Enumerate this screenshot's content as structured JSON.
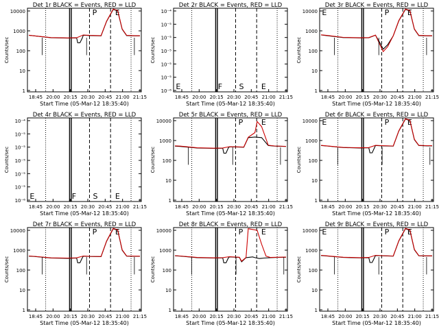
{
  "chart_data": [
    {
      "type": "line",
      "title": "Det 1r BLACK = Events, RED = LLD",
      "xlabel": "Start Time (05-Mar-12 18:35:40)",
      "ylabel": "Counts/sec",
      "yscale": "log",
      "ylim": [
        1,
        10000
      ],
      "ytick_labels": [
        "1",
        "10",
        "100",
        "1000",
        "10000"
      ],
      "xtick_labels": [
        "18:45",
        "20:00",
        "20:15",
        "20:30",
        "20:45",
        "21:00",
        "21:15"
      ],
      "flags": [
        "P",
        "E"
      ],
      "series": [
        {
          "name": "Events",
          "color": "#000000",
          "x": [
            0,
            0.05,
            0.2,
            0.35,
            0.43,
            0.44,
            0.46,
            0.48,
            0.49,
            0.55,
            0.65,
            0.7,
            0.76,
            0.8,
            0.84,
            0.88,
            0.95,
            1.0
          ],
          "y": [
            600,
            560,
            450,
            430,
            440,
            250,
            250,
            420,
            600,
            580,
            560,
            3000,
            12000,
            10000,
            1200,
            580,
            560,
            560
          ]
        },
        {
          "name": "LLD",
          "color": "#cc0000",
          "x": [
            0,
            0.05,
            0.2,
            0.35,
            0.43,
            0.49,
            0.55,
            0.65,
            0.7,
            0.76,
            0.8,
            0.84,
            0.88,
            0.95,
            1.0
          ],
          "y": [
            600,
            560,
            460,
            440,
            450,
            620,
            590,
            570,
            3100,
            12500,
            10500,
            1250,
            590,
            570,
            570
          ]
        }
      ]
    },
    {
      "type": "line",
      "title": "Det 2r BLACK = Events, RED = LLD",
      "xlabel": "Start Time (05-Mar-12 18:35:40)",
      "ylabel": "Counts/sec",
      "yscale": "log",
      "ylim": [
        1e-06,
        0.0001
      ],
      "ytick_labels": [
        "10⁻⁶",
        "10⁻⁵",
        "10⁻⁵",
        "10⁻⁵",
        "10⁻⁵",
        "10⁻⁵",
        "10⁻⁴"
      ],
      "xtick_labels": [
        "18:45",
        "20:00",
        "20:15",
        "20:30",
        "20:45",
        "21:00",
        "21:15"
      ],
      "flags": [
        "E",
        "F",
        "S",
        "E"
      ],
      "series": []
    },
    {
      "type": "line",
      "title": "Det 3r BLACK = Events, RED = LLD",
      "xlabel": "Start Time (05-Mar-12 18:35:40)",
      "ylabel": "Counts/sec",
      "yscale": "log",
      "ylim": [
        1,
        10000
      ],
      "ytick_labels": [
        "1",
        "10",
        "100",
        "1000",
        "10000"
      ],
      "xtick_labels": [
        "18:45",
        "20:00",
        "20:15",
        "20:30",
        "20:45",
        "21:00",
        "21:15"
      ],
      "flags": [
        "E",
        "P",
        "E"
      ],
      "series": [
        {
          "name": "Events",
          "color": "#000000",
          "x": [
            0,
            0.05,
            0.2,
            0.35,
            0.43,
            0.49,
            0.53,
            0.56,
            0.6,
            0.65,
            0.7,
            0.76,
            0.8,
            0.84,
            0.88,
            0.95,
            1.0
          ],
          "y": [
            620,
            580,
            460,
            440,
            450,
            600,
            250,
            120,
            200,
            560,
            3200,
            12000,
            10000,
            1200,
            580,
            560,
            560
          ]
        },
        {
          "name": "LLD",
          "color": "#cc0000",
          "x": [
            0,
            0.05,
            0.2,
            0.35,
            0.43,
            0.49,
            0.53,
            0.56,
            0.6,
            0.65,
            0.7,
            0.76,
            0.8,
            0.84,
            0.88,
            0.95,
            1.0
          ],
          "y": [
            630,
            590,
            470,
            450,
            460,
            610,
            200,
            90,
            160,
            570,
            3300,
            12500,
            10500,
            1250,
            590,
            570,
            570
          ]
        }
      ]
    },
    {
      "type": "line",
      "title": "Det 4r BLACK = Events, RED = LLD",
      "xlabel": "Start Time (05-Mar-12 18:35:40)",
      "ylabel": "Counts/sec",
      "yscale": "log",
      "ylim": [
        1e-06,
        0.0001
      ],
      "ytick_labels": [
        "10⁻⁶",
        "10⁻⁵",
        "10⁻⁵",
        "10⁻⁵",
        "10⁻⁵",
        "10⁻⁵",
        "10⁻⁴"
      ],
      "xtick_labels": [
        "18:45",
        "20:00",
        "20:15",
        "20:30",
        "20:45",
        "21:00",
        "21:15"
      ],
      "flags": [
        "E",
        "F",
        "S",
        "E"
      ],
      "series": []
    },
    {
      "type": "line",
      "title": "Det 5r BLACK = Events, RED = LLD",
      "xlabel": "Start Time (05-Mar-12 18:35:40)",
      "ylabel": "Counts/sec",
      "yscale": "log",
      "ylim": [
        1,
        10000
      ],
      "ytick_labels": [
        "1",
        "10",
        "100",
        "1000",
        "10000"
      ],
      "xtick_labels": [
        "18:45",
        "20:00",
        "20:15",
        "20:30",
        "20:45",
        "21:00",
        "21:15"
      ],
      "flags": [
        "P",
        "E"
      ],
      "series": [
        {
          "name": "Events",
          "color": "#000000",
          "x": [
            0,
            0.05,
            0.2,
            0.35,
            0.43,
            0.44,
            0.46,
            0.48,
            0.49,
            0.55,
            0.62,
            0.66,
            0.72,
            0.78,
            0.84,
            0.9,
            1.0
          ],
          "y": [
            520,
            500,
            420,
            400,
            410,
            230,
            230,
            420,
            480,
            470,
            460,
            1400,
            1500,
            1400,
            560,
            520,
            500
          ]
        },
        {
          "name": "LLD",
          "color": "#cc0000",
          "x": [
            0,
            0.05,
            0.2,
            0.35,
            0.43,
            0.49,
            0.55,
            0.62,
            0.66,
            0.72,
            0.74,
            0.78,
            0.84,
            0.9,
            1.0
          ],
          "y": [
            540,
            520,
            430,
            410,
            420,
            490,
            480,
            470,
            1450,
            2500,
            9000,
            5000,
            580,
            530,
            510
          ]
        }
      ]
    },
    {
      "type": "line",
      "title": "Det 6r BLACK = Events, RED = LLD",
      "xlabel": "Start Time (05-Mar-12 18:35:40)",
      "ylabel": "Counts/sec",
      "yscale": "log",
      "ylim": [
        1,
        10000
      ],
      "ytick_labels": [
        "1",
        "10",
        "100",
        "1000",
        "10000"
      ],
      "xtick_labels": [
        "18:45",
        "20:00",
        "20:15",
        "20:30",
        "20:45",
        "21:00",
        "21:15"
      ],
      "flags": [
        "E",
        "P",
        "E"
      ],
      "series": [
        {
          "name": "Events",
          "color": "#000000",
          "x": [
            0,
            0.05,
            0.2,
            0.35,
            0.43,
            0.44,
            0.46,
            0.48,
            0.49,
            0.55,
            0.65,
            0.7,
            0.76,
            0.8,
            0.84,
            0.88,
            0.95,
            1.0
          ],
          "y": [
            560,
            530,
            440,
            420,
            430,
            240,
            240,
            420,
            560,
            540,
            520,
            3000,
            12000,
            10000,
            1100,
            560,
            540,
            540
          ]
        },
        {
          "name": "LLD",
          "color": "#cc0000",
          "x": [
            0,
            0.05,
            0.2,
            0.35,
            0.43,
            0.49,
            0.55,
            0.65,
            0.7,
            0.76,
            0.8,
            0.84,
            0.88,
            0.95,
            1.0
          ],
          "y": [
            570,
            540,
            450,
            430,
            440,
            570,
            550,
            530,
            3100,
            12500,
            10500,
            1150,
            570,
            550,
            550
          ]
        }
      ]
    },
    {
      "type": "line",
      "title": "Det 7r BLACK = Events, RED = LLD",
      "xlabel": "Start Time (05-Mar-12 18:35:40)",
      "ylabel": "Counts/sec",
      "yscale": "log",
      "ylim": [
        1,
        10000
      ],
      "ytick_labels": [
        "1",
        "10",
        "100",
        "1000",
        "10000"
      ],
      "xtick_labels": [
        "18:45",
        "20:00",
        "20:15",
        "20:30",
        "20:45",
        "21:00",
        "21:15"
      ],
      "flags": [
        "P",
        "E"
      ],
      "series": [
        {
          "name": "Events",
          "color": "#000000",
          "x": [
            0,
            0.05,
            0.2,
            0.35,
            0.43,
            0.44,
            0.46,
            0.48,
            0.49,
            0.55,
            0.65,
            0.7,
            0.76,
            0.8,
            0.84,
            0.88,
            0.95,
            1.0
          ],
          "y": [
            500,
            480,
            400,
            390,
            400,
            230,
            230,
            400,
            500,
            480,
            470,
            2800,
            12000,
            10000,
            1000,
            500,
            490,
            490
          ]
        },
        {
          "name": "LLD",
          "color": "#cc0000",
          "x": [
            0,
            0.05,
            0.2,
            0.35,
            0.43,
            0.49,
            0.55,
            0.65,
            0.7,
            0.76,
            0.8,
            0.84,
            0.88,
            0.95,
            1.0
          ],
          "y": [
            510,
            490,
            410,
            400,
            410,
            510,
            490,
            480,
            2900,
            12500,
            10500,
            1050,
            510,
            500,
            500
          ]
        }
      ]
    },
    {
      "type": "line",
      "title": "Det 8r BLACK = Events, RED = LLD",
      "xlabel": "Start Time (05-Mar-12 18:35:40)",
      "ylabel": "Counts/sec",
      "yscale": "log",
      "ylim": [
        1,
        10000
      ],
      "ytick_labels": [
        "1",
        "10",
        "100",
        "1000",
        "10000"
      ],
      "xtick_labels": [
        "18:45",
        "20:00",
        "20:15",
        "20:30",
        "20:45",
        "21:00",
        "21:15"
      ],
      "flags": [
        "P",
        "E"
      ],
      "series": [
        {
          "name": "Events",
          "color": "#000000",
          "x": [
            0,
            0.05,
            0.2,
            0.35,
            0.43,
            0.44,
            0.46,
            0.48,
            0.49,
            0.55,
            0.58,
            0.6,
            0.64,
            0.7,
            0.72,
            0.76,
            0.8,
            0.86,
            0.92,
            1.0
          ],
          "y": [
            520,
            500,
            420,
            400,
            410,
            230,
            230,
            400,
            460,
            440,
            430,
            260,
            420,
            460,
            420,
            380,
            400,
            420,
            430,
            440
          ]
        },
        {
          "name": "LLD",
          "color": "#cc0000",
          "x": [
            0,
            0.05,
            0.2,
            0.35,
            0.43,
            0.49,
            0.55,
            0.58,
            0.6,
            0.64,
            0.66,
            0.7,
            0.74,
            0.78,
            0.82,
            0.86,
            0.92,
            1.0
          ],
          "y": [
            530,
            510,
            430,
            410,
            420,
            470,
            450,
            440,
            280,
            430,
            12000,
            11000,
            10000,
            2000,
            500,
            430,
            440,
            450
          ]
        }
      ]
    },
    {
      "type": "line",
      "title": "Det 9r BLACK = Events, RED = LLD",
      "xlabel": "Start Time (05-Mar-12 18:35:40)",
      "ylabel": "Counts/sec",
      "yscale": "log",
      "ylim": [
        1,
        10000
      ],
      "ytick_labels": [
        "1",
        "10",
        "100",
        "1000",
        "10000"
      ],
      "xtick_labels": [
        "18:45",
        "20:00",
        "20:15",
        "20:30",
        "20:45",
        "21:00",
        "21:15"
      ],
      "flags": [
        "E",
        "P",
        "E"
      ],
      "series": [
        {
          "name": "Events",
          "color": "#000000",
          "x": [
            0,
            0.05,
            0.2,
            0.35,
            0.43,
            0.44,
            0.46,
            0.48,
            0.49,
            0.55,
            0.65,
            0.7,
            0.76,
            0.8,
            0.84,
            0.88,
            0.95,
            1.0
          ],
          "y": [
            540,
            510,
            430,
            410,
            420,
            240,
            240,
            410,
            540,
            520,
            500,
            2900,
            12000,
            10000,
            1050,
            520,
            510,
            510
          ]
        },
        {
          "name": "LLD",
          "color": "#cc0000",
          "x": [
            0,
            0.05,
            0.2,
            0.35,
            0.43,
            0.49,
            0.55,
            0.65,
            0.7,
            0.76,
            0.8,
            0.84,
            0.88,
            0.95,
            1.0
          ],
          "y": [
            550,
            520,
            440,
            420,
            430,
            550,
            530,
            510,
            3000,
            12500,
            10500,
            1100,
            530,
            520,
            520
          ]
        }
      ]
    }
  ]
}
